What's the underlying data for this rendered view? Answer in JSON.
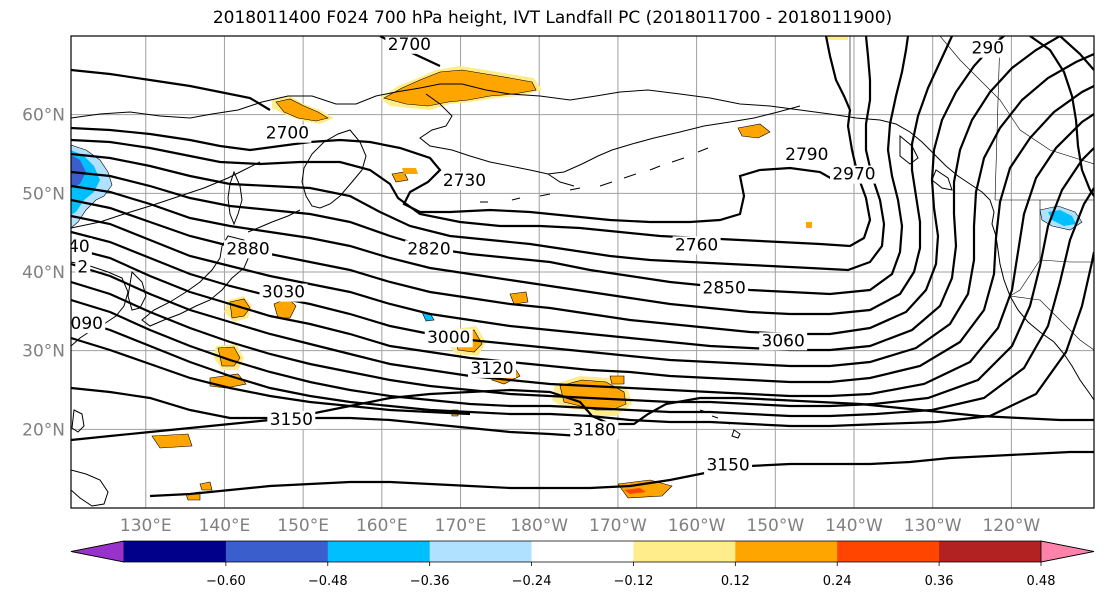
{
  "title": "2018011400 F024 700 hPa height, IVT Landfall PC (2018011700 - 2018011900)",
  "lat_labels": [
    "60°N",
    "50°N",
    "40°N",
    "30°N",
    "20°N"
  ],
  "lat_values": [
    60,
    50,
    40,
    30,
    20
  ],
  "lon_labels": [
    "130°E",
    "140°E",
    "150°E",
    "160°E",
    "170°E",
    "180°W",
    "170°W",
    "160°W",
    "150°W",
    "140°W",
    "130°W",
    "120°W"
  ],
  "lon_values": [
    130,
    140,
    150,
    160,
    170,
    180,
    190,
    200,
    210,
    220,
    230,
    240
  ],
  "colorbar": {
    "colors": [
      "#9932cc",
      "#00008b",
      "#3a5fcd",
      "#00bfff",
      "#b0e2ff",
      "#ffffff",
      "#ffec8b",
      "#ffa500",
      "#ff4500",
      "#b22222",
      "#ff82ab"
    ],
    "tick_values": [
      -0.6,
      -0.48,
      -0.36,
      -0.24,
      -0.12,
      0.12,
      0.24,
      0.36,
      0.48,
      0.6
    ],
    "tick_labels": [
      "−0.60",
      "−0.48",
      "−0.36",
      "−0.24",
      "−0.12",
      "0.12",
      "0.24",
      "0.36",
      "0.48",
      "0.60"
    ]
  },
  "contour_labels": [
    {
      "text": "2700",
      "lon": 163.5,
      "lat": 68.5
    },
    {
      "text": "2700",
      "lon": 148.0,
      "lat": 57.2
    },
    {
      "text": "2730",
      "lon": 170.5,
      "lat": 51.2
    },
    {
      "text": "2790",
      "lon": 214.0,
      "lat": 54.5
    },
    {
      "text": "2970",
      "lon": 220.0,
      "lat": 52.0
    },
    {
      "text": "2880",
      "lon": 143.0,
      "lat": 42.5
    },
    {
      "text": "2820",
      "lon": 166.0,
      "lat": 42.5
    },
    {
      "text": "2760",
      "lon": 200.0,
      "lat": 43.0
    },
    {
      "text": "2850",
      "lon": 203.5,
      "lat": 37.5
    },
    {
      "text": "3030",
      "lon": 147.5,
      "lat": 37.0
    },
    {
      "text": "3000",
      "lon": 168.5,
      "lat": 31.2
    },
    {
      "text": "3060",
      "lon": 211.0,
      "lat": 30.8
    },
    {
      "text": "3120",
      "lon": 174.0,
      "lat": 27.3
    },
    {
      "text": "3180",
      "lon": 187.0,
      "lat": 19.5
    },
    {
      "text": "3150",
      "lon": 148.5,
      "lat": 20.8
    },
    {
      "text": "3150",
      "lon": 204.0,
      "lat": 15.0
    },
    {
      "text": "40",
      "lon": 121.5,
      "lat": 42.8
    },
    {
      "text": "090",
      "lon": 122.5,
      "lat": 33.0
    },
    {
      "text": "2",
      "lon": 122.0,
      "lat": 40.2
    },
    {
      "text": "290",
      "lon": 237.0,
      "lat": 68.0
    }
  ]
}
